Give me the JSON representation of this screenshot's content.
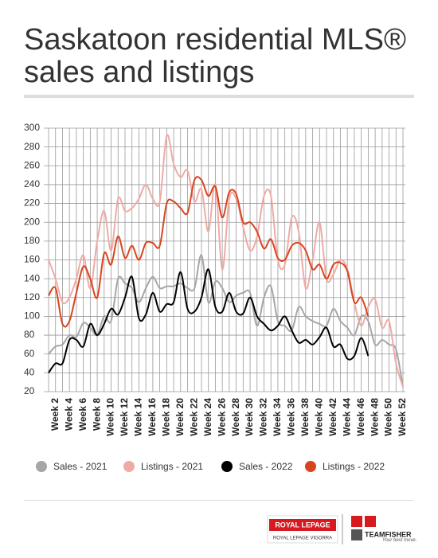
{
  "chart_data": {
    "type": "line",
    "title": [
      "Saskatoon residential MLS®",
      "sales and listings"
    ],
    "categories": [
      null,
      "Week 2",
      null,
      "Week 4",
      null,
      "Week 6",
      null,
      "Week 8",
      null,
      "Week 10",
      null,
      "Week 12",
      null,
      "Week 14",
      null,
      "Week 16",
      null,
      "Week 18",
      null,
      "Week 20",
      null,
      "Week 22",
      null,
      "Week 24",
      null,
      "Week 26",
      null,
      "Week 28",
      null,
      "Week 30",
      null,
      "Week 32",
      null,
      "Week 34",
      null,
      "Week 36",
      null,
      "Week 38",
      null,
      "Week 40",
      null,
      "Week 42",
      null,
      "Week 44",
      null,
      "Week 46",
      null,
      "Week 48",
      null,
      "Week 50",
      null,
      "Week 52"
    ],
    "series": [
      {
        "name": "Sales - 2021",
        "color": "#a6a6a6",
        "values": [
          60,
          68,
          70,
          80,
          78,
          93,
          88,
          80,
          100,
          95,
          140,
          135,
          130,
          115,
          130,
          142,
          130,
          132,
          132,
          135,
          130,
          130,
          165,
          115,
          137,
          130,
          115,
          122,
          125,
          125,
          90,
          120,
          132,
          95,
          90,
          85,
          110,
          100,
          95,
          92,
          90,
          108,
          95,
          88,
          80,
          100,
          95,
          70,
          75,
          70,
          65,
          25
        ]
      },
      {
        "name": "Listings - 2021",
        "color": "#f0aaa5",
        "values": [
          160,
          140,
          115,
          120,
          140,
          165,
          130,
          180,
          212,
          170,
          225,
          212,
          215,
          225,
          240,
          225,
          222,
          292,
          262,
          248,
          255,
          222,
          235,
          190,
          240,
          150,
          225,
          225,
          195,
          170,
          185,
          228,
          228,
          160,
          155,
          205,
          190,
          130,
          160,
          200,
          140,
          145,
          160,
          150,
          115,
          90,
          110,
          118,
          88,
          95,
          50,
          25
        ]
      },
      {
        "name": "Sales - 2022",
        "color": "#000000",
        "values": [
          40,
          50,
          50,
          75,
          75,
          68,
          92,
          80,
          92,
          108,
          102,
          120,
          142,
          98,
          102,
          125,
          105,
          113,
          115,
          147,
          108,
          105,
          120,
          150,
          110,
          105,
          125,
          105,
          103,
          120,
          100,
          92,
          85,
          90,
          100,
          85,
          72,
          75,
          70,
          78,
          88,
          68,
          70,
          55,
          58,
          77,
          58,
          null,
          null,
          null,
          null,
          null
        ]
      },
      {
        "name": "Listings - 2022",
        "color": "#d9441f",
        "values": [
          122,
          130,
          92,
          95,
          125,
          153,
          140,
          120,
          167,
          155,
          185,
          162,
          175,
          160,
          178,
          178,
          175,
          220,
          222,
          215,
          210,
          245,
          245,
          228,
          238,
          205,
          232,
          230,
          200,
          200,
          190,
          172,
          182,
          162,
          160,
          175,
          178,
          170,
          150,
          155,
          140,
          155,
          157,
          148,
          115,
          120,
          100,
          null,
          null,
          null,
          null,
          null
        ]
      }
    ],
    "ylim": [
      20,
      300
    ],
    "yticks": [
      20,
      40,
      60,
      80,
      100,
      120,
      140,
      160,
      180,
      200,
      220,
      240,
      260,
      280,
      300
    ],
    "grid": true
  },
  "branding": {
    "royal_lepage": "ROYAL LEPAGE",
    "office": "ROYAL LEPAGE VIGORRA",
    "team": "TEAMFISHER",
    "slogan": "Your best move."
  }
}
